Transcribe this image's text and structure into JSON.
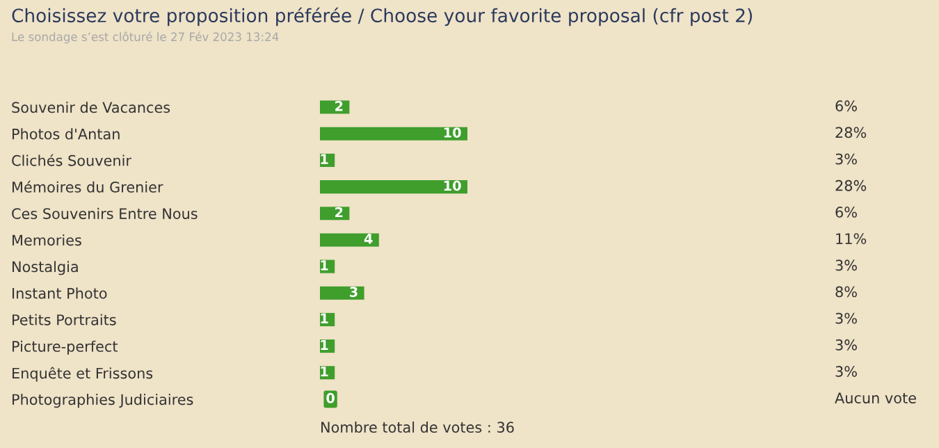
{
  "chart_data": {
    "type": "bar",
    "orientation": "horizontal",
    "title": "Choisissez votre proposition préférée / Choose your favorite proposal (cfr post 2)",
    "subtitle": "Le sondage s’est clôturé le 27 Fév 2023 13:24",
    "categories": [
      "Souvenir de Vacances",
      "Photos d'Antan",
      "Clichés Souvenir",
      "Mémoires du Grenier",
      "Ces Souvenirs Entre Nous",
      "Memories",
      "Nostalgia",
      "Instant Photo",
      "Petits Portraits",
      "Picture-perfect",
      "Enquête et Frissons",
      "Photographies Judiciaires"
    ],
    "values": [
      2,
      10,
      1,
      10,
      2,
      4,
      1,
      3,
      1,
      1,
      1,
      0
    ],
    "color": "#3f9e2c",
    "data_labels": true,
    "tick_labels": "y",
    "grid": false,
    "legend": false,
    "annotations": [
      "6%",
      "28%",
      "3%",
      "28%",
      "6%",
      "11%",
      "3%",
      "8%",
      "3%",
      "3%",
      "3%",
      "Aucun vote",
      "Nombre total de votes : 36"
    ]
  }
}
